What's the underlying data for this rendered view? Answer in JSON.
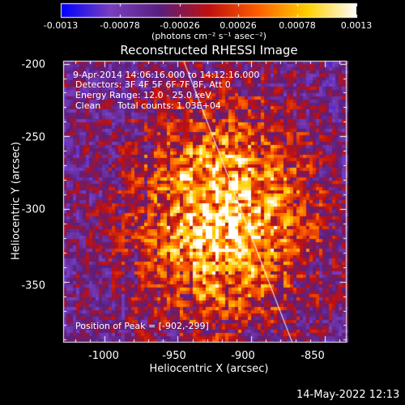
{
  "chart_data": {
    "type": "heatmap",
    "title": "Reconstructed RHESSI Image",
    "xlabel": "Heliocentric X (arcsec)",
    "ylabel": "Heliocentric Y (arcsec)",
    "xlim": [
      -1028,
      -835
    ],
    "ylim": [
      -392,
      -198
    ],
    "x_ticks": [
      -1000,
      -950,
      -900,
      -850
    ],
    "y_ticks": [
      -350,
      -300,
      -250,
      -200
    ],
    "colorbar": {
      "range": [
        -0.0013,
        0.0013
      ],
      "ticks": [
        "-0.0013",
        "-0.00078",
        "-0.00026",
        "0.00026",
        "0.00078",
        "0.0013"
      ],
      "label": "(photons cm⁻² s⁻¹ asec⁻²)",
      "colormap": [
        "#0000ff",
        "#7a3fbf",
        "#5a1f80",
        "#c01010",
        "#ff6000",
        "#ffd000",
        "#ffffff"
      ]
    },
    "annotations": {
      "time_range": "9-Apr-2014 14:06:16.000 to 14:12:16.000",
      "detectors": "Detectors: 3F 4F 5F 6F 7F 8F, Att 0",
      "energy": "Energy Range: 12.0 - 25.0 keV",
      "method": "Clean",
      "total_counts": "Total counts: 1.03E+04",
      "peak": "Position of Peak = [-902,-299]"
    },
    "peak_position": [
      -902,
      -299
    ],
    "limb_line": {
      "x": [
        -946,
        -872
      ],
      "y": [
        -198,
        -392
      ]
    }
  },
  "footer": {
    "timestamp": "14-May-2022 12:13"
  }
}
